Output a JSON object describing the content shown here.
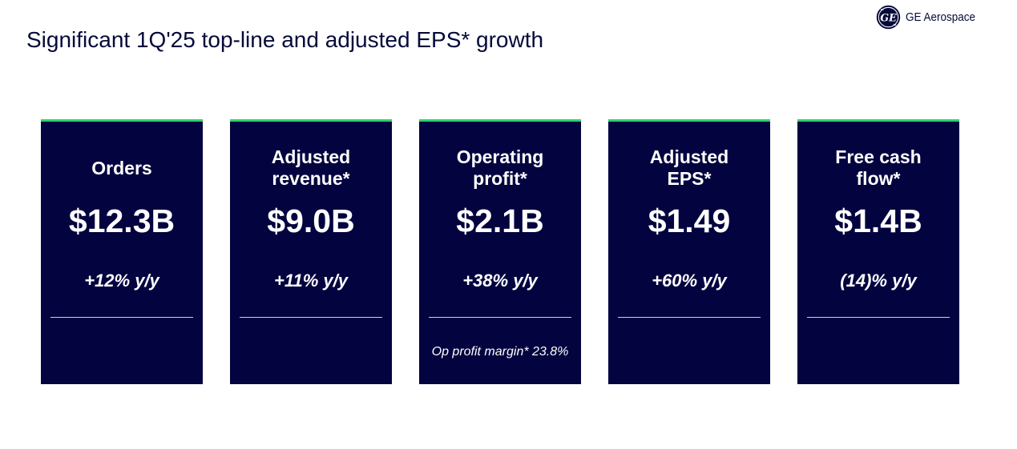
{
  "slide": {
    "title": "Significant 1Q'25 top-line and adjusted EPS* growth"
  },
  "brand": {
    "name": "GE Aerospace",
    "logo_icon": "ge-monogram-icon",
    "logo_text": "GE",
    "color": "#050a3a"
  },
  "colors": {
    "card_background": "#03033f",
    "card_accent": "#2fd16f",
    "divider": "#c9cfee",
    "text_on_card": "#ffffff"
  },
  "cards": [
    {
      "label": "Orders",
      "value": "$12.3B",
      "change": "+12% y/y",
      "note": ""
    },
    {
      "label": "Adjusted\nrevenue*",
      "value": "$9.0B",
      "change": "+11% y/y",
      "note": ""
    },
    {
      "label": "Operating\nprofit*",
      "value": "$2.1B",
      "change": "+38% y/y",
      "note": "Op profit margin* 23.8%"
    },
    {
      "label": "Adjusted\nEPS*",
      "value": "$1.49",
      "change": "+60% y/y",
      "note": ""
    },
    {
      "label": "Free cash\nflow*",
      "value": "$1.4B",
      "change": "(14)% y/y",
      "note": ""
    }
  ]
}
